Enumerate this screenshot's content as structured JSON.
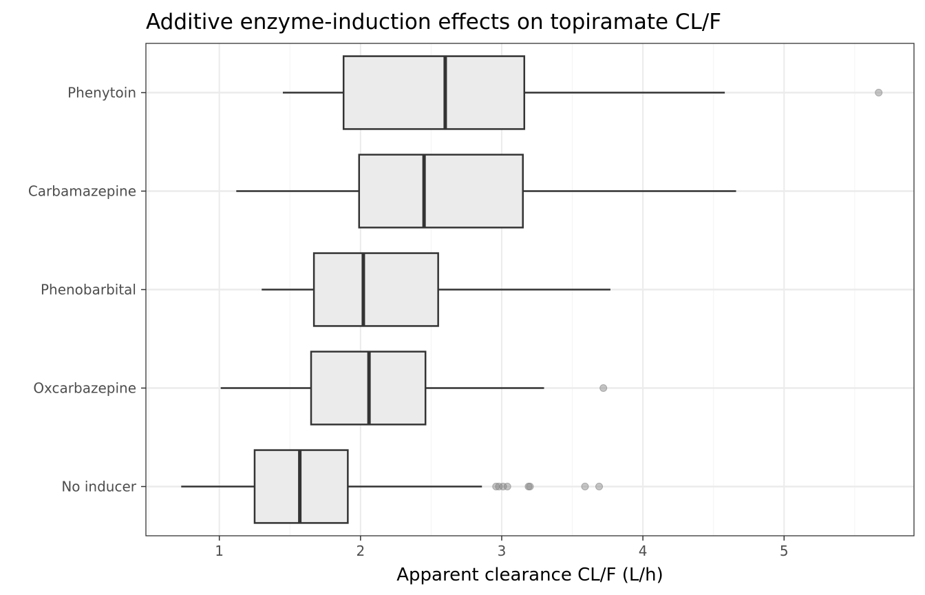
{
  "chart_data": {
    "type": "boxplot",
    "orientation": "horizontal",
    "title": "Additive enzyme-induction effects on topiramate CL/F",
    "xlabel": "Apparent clearance CL/F (L/h)",
    "ylabel": "",
    "xlim": [
      0.48,
      5.92
    ],
    "x_ticks": [
      1,
      2,
      3,
      4,
      5
    ],
    "grid": true,
    "categories": [
      "Phenytoin",
      "Carbamazepine",
      "Phenobarbital",
      "Oxcarbazepine",
      "No inducer"
    ],
    "boxes": [
      {
        "category": "Phenytoin",
        "whisker_low": 1.45,
        "q1": 1.88,
        "median": 2.6,
        "q3": 3.16,
        "whisker_high": 4.58,
        "outliers": [
          5.67
        ]
      },
      {
        "category": "Carbamazepine",
        "whisker_low": 1.12,
        "q1": 1.99,
        "median": 2.45,
        "q3": 3.15,
        "whisker_high": 4.66,
        "outliers": []
      },
      {
        "category": "Phenobarbital",
        "whisker_low": 1.3,
        "q1": 1.67,
        "median": 2.02,
        "q3": 2.55,
        "whisker_high": 3.77,
        "outliers": []
      },
      {
        "category": "Oxcarbazepine",
        "whisker_low": 1.01,
        "q1": 1.65,
        "median": 2.06,
        "q3": 2.46,
        "whisker_high": 3.3,
        "outliers": [
          3.72
        ]
      },
      {
        "category": "No inducer",
        "whisker_low": 0.73,
        "q1": 1.25,
        "median": 1.57,
        "q3": 1.91,
        "whisker_high": 2.86,
        "outliers": [
          2.96,
          2.98,
          3.01,
          3.04,
          3.19,
          3.2,
          3.59,
          3.69
        ]
      }
    ],
    "colors": {
      "box_fill": "#ebebeb",
      "box_stroke": "#333333",
      "outlier": "#808080",
      "grid_major": "#ebebeb",
      "grid_minor": "#f5f5f5",
      "panel_border": "#333333"
    }
  }
}
